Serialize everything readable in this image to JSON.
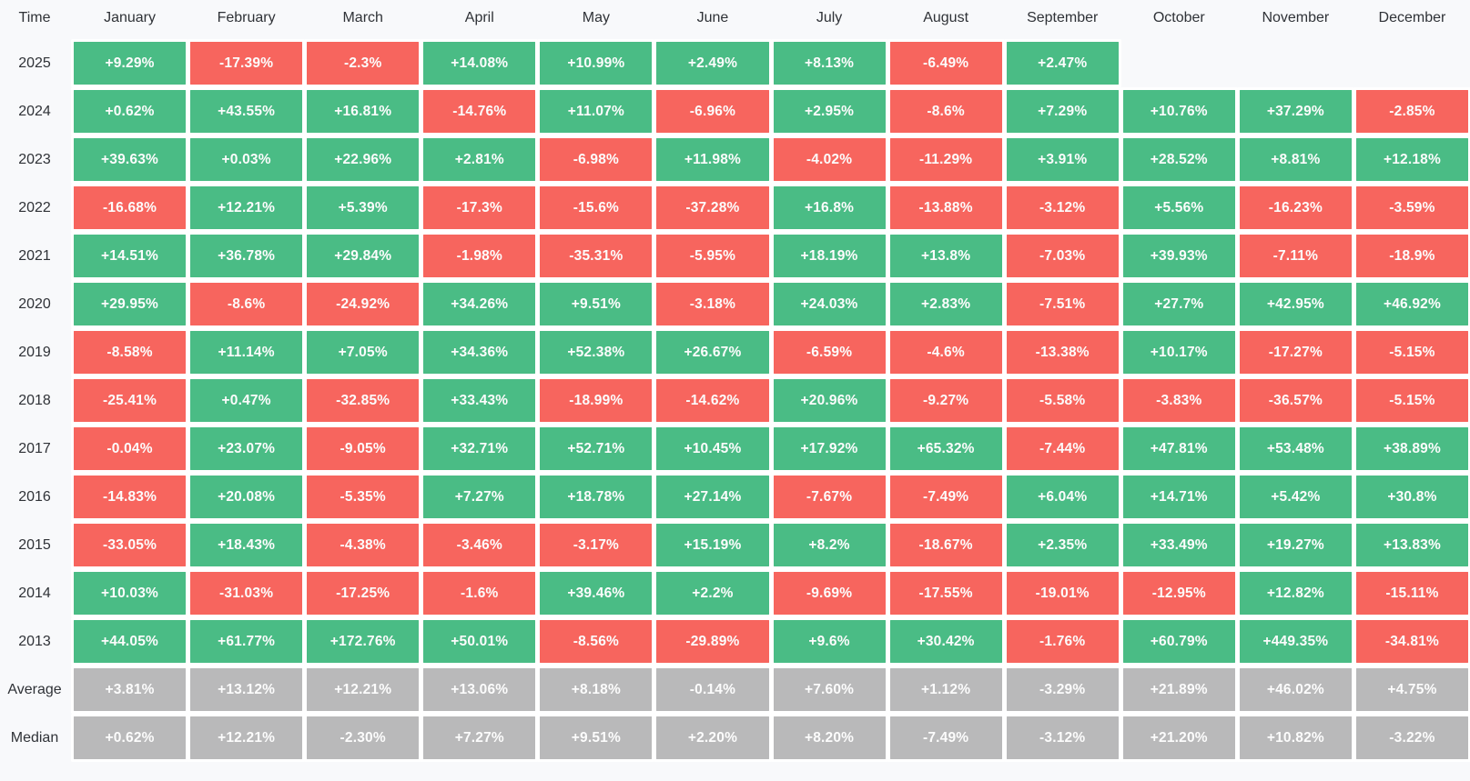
{
  "chart_data": {
    "type": "heatmap",
    "corner_label": "Time",
    "columns": [
      "January",
      "February",
      "March",
      "April",
      "May",
      "June",
      "July",
      "August",
      "September",
      "October",
      "November",
      "December"
    ],
    "rows": [
      {
        "label": "2025",
        "summary": false,
        "values": [
          "+9.29%",
          "-17.39%",
          "-2.3%",
          "+14.08%",
          "+10.99%",
          "+2.49%",
          "+8.13%",
          "-6.49%",
          "+2.47%",
          "",
          "",
          ""
        ]
      },
      {
        "label": "2024",
        "summary": false,
        "values": [
          "+0.62%",
          "+43.55%",
          "+16.81%",
          "-14.76%",
          "+11.07%",
          "-6.96%",
          "+2.95%",
          "-8.6%",
          "+7.29%",
          "+10.76%",
          "+37.29%",
          "-2.85%"
        ]
      },
      {
        "label": "2023",
        "summary": false,
        "values": [
          "+39.63%",
          "+0.03%",
          "+22.96%",
          "+2.81%",
          "-6.98%",
          "+11.98%",
          "-4.02%",
          "-11.29%",
          "+3.91%",
          "+28.52%",
          "+8.81%",
          "+12.18%"
        ]
      },
      {
        "label": "2022",
        "summary": false,
        "values": [
          "-16.68%",
          "+12.21%",
          "+5.39%",
          "-17.3%",
          "-15.6%",
          "-37.28%",
          "+16.8%",
          "-13.88%",
          "-3.12%",
          "+5.56%",
          "-16.23%",
          "-3.59%"
        ]
      },
      {
        "label": "2021",
        "summary": false,
        "values": [
          "+14.51%",
          "+36.78%",
          "+29.84%",
          "-1.98%",
          "-35.31%",
          "-5.95%",
          "+18.19%",
          "+13.8%",
          "-7.03%",
          "+39.93%",
          "-7.11%",
          "-18.9%"
        ]
      },
      {
        "label": "2020",
        "summary": false,
        "values": [
          "+29.95%",
          "-8.6%",
          "-24.92%",
          "+34.26%",
          "+9.51%",
          "-3.18%",
          "+24.03%",
          "+2.83%",
          "-7.51%",
          "+27.7%",
          "+42.95%",
          "+46.92%"
        ]
      },
      {
        "label": "2019",
        "summary": false,
        "values": [
          "-8.58%",
          "+11.14%",
          "+7.05%",
          "+34.36%",
          "+52.38%",
          "+26.67%",
          "-6.59%",
          "-4.6%",
          "-13.38%",
          "+10.17%",
          "-17.27%",
          "-5.15%"
        ]
      },
      {
        "label": "2018",
        "summary": false,
        "values": [
          "-25.41%",
          "+0.47%",
          "-32.85%",
          "+33.43%",
          "-18.99%",
          "-14.62%",
          "+20.96%",
          "-9.27%",
          "-5.58%",
          "-3.83%",
          "-36.57%",
          "-5.15%"
        ]
      },
      {
        "label": "2017",
        "summary": false,
        "values": [
          "-0.04%",
          "+23.07%",
          "-9.05%",
          "+32.71%",
          "+52.71%",
          "+10.45%",
          "+17.92%",
          "+65.32%",
          "-7.44%",
          "+47.81%",
          "+53.48%",
          "+38.89%"
        ]
      },
      {
        "label": "2016",
        "summary": false,
        "values": [
          "-14.83%",
          "+20.08%",
          "-5.35%",
          "+7.27%",
          "+18.78%",
          "+27.14%",
          "-7.67%",
          "-7.49%",
          "+6.04%",
          "+14.71%",
          "+5.42%",
          "+30.8%"
        ]
      },
      {
        "label": "2015",
        "summary": false,
        "values": [
          "-33.05%",
          "+18.43%",
          "-4.38%",
          "-3.46%",
          "-3.17%",
          "+15.19%",
          "+8.2%",
          "-18.67%",
          "+2.35%",
          "+33.49%",
          "+19.27%",
          "+13.83%"
        ]
      },
      {
        "label": "2014",
        "summary": false,
        "values": [
          "+10.03%",
          "-31.03%",
          "-17.25%",
          "-1.6%",
          "+39.46%",
          "+2.2%",
          "-9.69%",
          "-17.55%",
          "-19.01%",
          "-12.95%",
          "+12.82%",
          "-15.11%"
        ]
      },
      {
        "label": "2013",
        "summary": false,
        "values": [
          "+44.05%",
          "+61.77%",
          "+172.76%",
          "+50.01%",
          "-8.56%",
          "-29.89%",
          "+9.6%",
          "+30.42%",
          "-1.76%",
          "+60.79%",
          "+449.35%",
          "-34.81%"
        ]
      },
      {
        "label": "Average",
        "summary": true,
        "values": [
          "+3.81%",
          "+13.12%",
          "+12.21%",
          "+13.06%",
          "+8.18%",
          "-0.14%",
          "+7.60%",
          "+1.12%",
          "-3.29%",
          "+21.89%",
          "+46.02%",
          "+4.75%"
        ]
      },
      {
        "label": "Median",
        "summary": true,
        "values": [
          "+0.62%",
          "+12.21%",
          "-2.30%",
          "+7.27%",
          "+9.51%",
          "+2.20%",
          "+8.20%",
          "-7.49%",
          "-3.12%",
          "+21.20%",
          "+10.82%",
          "-3.22%"
        ]
      }
    ],
    "colors": {
      "positive": "#4abc85",
      "negative": "#f7655e",
      "summary": "#b9b9ba",
      "cell_text": "#fcfcfc",
      "label_text": "#2f3237",
      "background": "#f8f9fb",
      "gap": "#ffffff"
    },
    "layout": {
      "grid": "gapped-cells",
      "legend_position": "none",
      "empty_cells": [
        "2025: October",
        "2025: November",
        "2025: December"
      ]
    }
  }
}
